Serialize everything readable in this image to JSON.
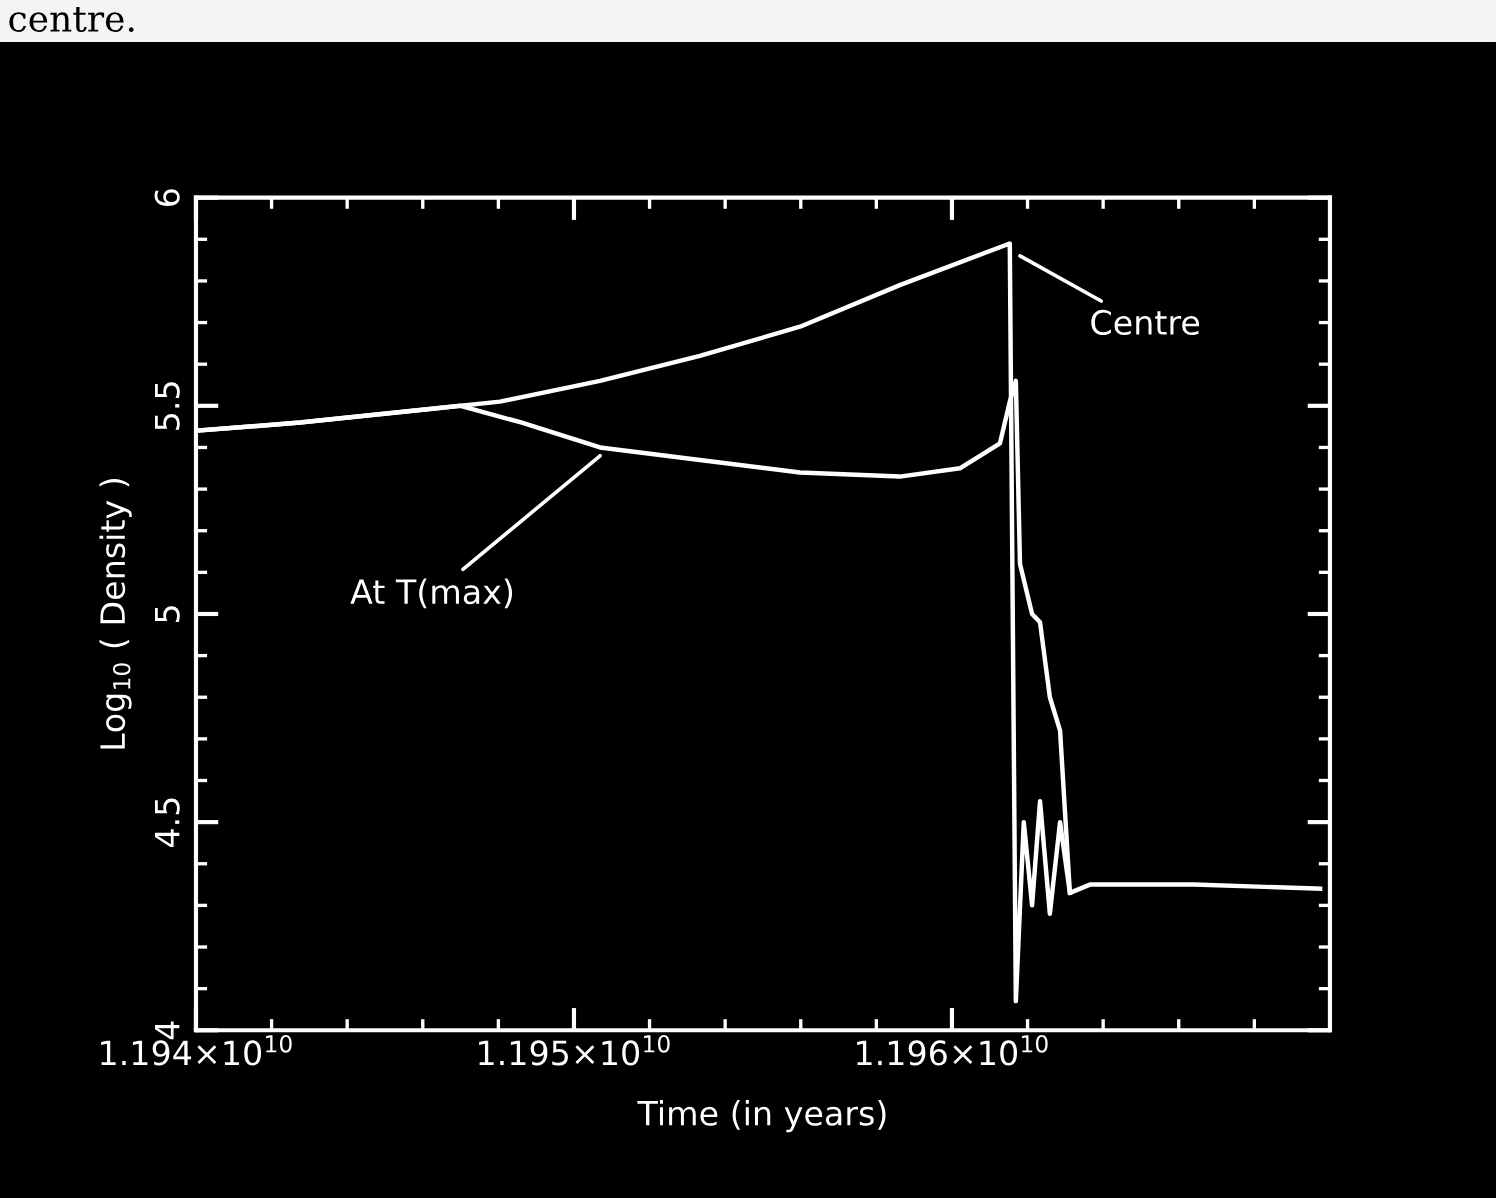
{
  "chart_data": {
    "type": "line",
    "xlabel": "Time (in years)",
    "ylabel": "Log$_{10}$ ( Density )",
    "xlim": [
      11940000000,
      11970000000
    ],
    "ylim": [
      4,
      6
    ],
    "xticks": [
      {
        "value": 11940000000,
        "label": "1.194×10$^{10}$"
      },
      {
        "value": 11950000000,
        "label": "1.195×10$^{10}$"
      },
      {
        "value": 11960000000,
        "label": "1.196×10$^{10}$"
      }
    ],
    "yticks": [
      4,
      4.5,
      5,
      5.5,
      6
    ],
    "grid": false,
    "legend": false,
    "marker": "none",
    "line_style": "solid",
    "series": [
      {
        "color": "#ffffff",
        "x": [
          11940000000,
          11942750000,
          11945930000,
          11948040000,
          11950690000,
          11953330000,
          11955980000,
          11958620000,
          11961530000,
          11961690000,
          11961900000,
          11962120000,
          11962330000,
          11962590000,
          11962860000,
          11963120000,
          11963650000,
          11966400000,
          11969740000
        ],
        "values": [
          5.44,
          5.46,
          5.49,
          5.51,
          5.56,
          5.62,
          5.69,
          5.79,
          5.89,
          4.07,
          4.5,
          4.3,
          4.55,
          4.28,
          4.5,
          4.33,
          4.35,
          4.35,
          4.34
        ]
      },
      {
        "color": "#ffffff",
        "x": [
          11940000000,
          11942750000,
          11945930000,
          11947000000,
          11948600000,
          11950690000,
          11953330000,
          11955980000,
          11958620000,
          11960210000,
          11961270000,
          11961530000,
          11961690000,
          11961800000,
          11962120000,
          11962330000,
          11962590000,
          11962860000,
          11963120000
        ],
        "values": [
          5.44,
          5.46,
          5.49,
          5.5,
          5.46,
          5.4,
          5.37,
          5.34,
          5.33,
          5.35,
          5.41,
          5.51,
          5.56,
          5.12,
          5.0,
          4.98,
          4.8,
          4.72,
          4.33
        ]
      }
    ],
    "annotations": [
      {
        "text": "Centre",
        "x": 11961800000,
        "y": 5.86
      },
      {
        "text": "At T(max)",
        "x": 11950690000,
        "y": 5.38
      },
      "centre."
    ]
  }
}
